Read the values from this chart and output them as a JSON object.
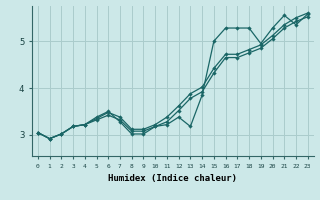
{
  "xlabel": "Humidex (Indice chaleur)",
  "bg_color": "#cce8e8",
  "grid_color": "#aacccc",
  "line_color": "#1a6666",
  "xlim": [
    -0.5,
    23.5
  ],
  "ylim": [
    2.55,
    5.75
  ],
  "xticks": [
    0,
    1,
    2,
    3,
    4,
    5,
    6,
    7,
    8,
    9,
    10,
    11,
    12,
    13,
    14,
    15,
    16,
    17,
    18,
    19,
    20,
    21,
    22,
    23
  ],
  "yticks": [
    3,
    4,
    5
  ],
  "series1_x": [
    0,
    1,
    2,
    3,
    4,
    5,
    6,
    7,
    8,
    9,
    10,
    11,
    12,
    13,
    14,
    15,
    16,
    17,
    18,
    19,
    20,
    21,
    22,
    23
  ],
  "series1_y": [
    3.05,
    2.92,
    3.02,
    3.18,
    3.22,
    3.32,
    3.42,
    3.32,
    3.08,
    3.08,
    3.18,
    3.28,
    3.52,
    3.78,
    3.92,
    4.32,
    4.65,
    4.65,
    4.75,
    4.85,
    5.05,
    5.28,
    5.42,
    5.52
  ],
  "series2_x": [
    0,
    1,
    2,
    3,
    4,
    5,
    6,
    7,
    8,
    9,
    10,
    11,
    12,
    13,
    14,
    15,
    16,
    17,
    18,
    19,
    20,
    21,
    22,
    23
  ],
  "series2_y": [
    3.05,
    2.92,
    3.02,
    3.18,
    3.22,
    3.35,
    3.48,
    3.38,
    3.12,
    3.12,
    3.22,
    3.38,
    3.62,
    3.88,
    4.02,
    4.42,
    4.72,
    4.72,
    4.82,
    4.92,
    5.12,
    5.35,
    5.5,
    5.6
  ],
  "series3_x": [
    0,
    1,
    2,
    3,
    4,
    5,
    6,
    7,
    8,
    9,
    10,
    11,
    12,
    13,
    14,
    15,
    16,
    17,
    18,
    19,
    20,
    21,
    22,
    23
  ],
  "series3_y": [
    3.05,
    2.92,
    3.02,
    3.18,
    3.22,
    3.38,
    3.5,
    3.28,
    3.02,
    3.02,
    3.18,
    3.22,
    3.38,
    3.18,
    3.85,
    5.0,
    5.28,
    5.28,
    5.28,
    4.95,
    5.28,
    5.55,
    5.35,
    5.58
  ]
}
